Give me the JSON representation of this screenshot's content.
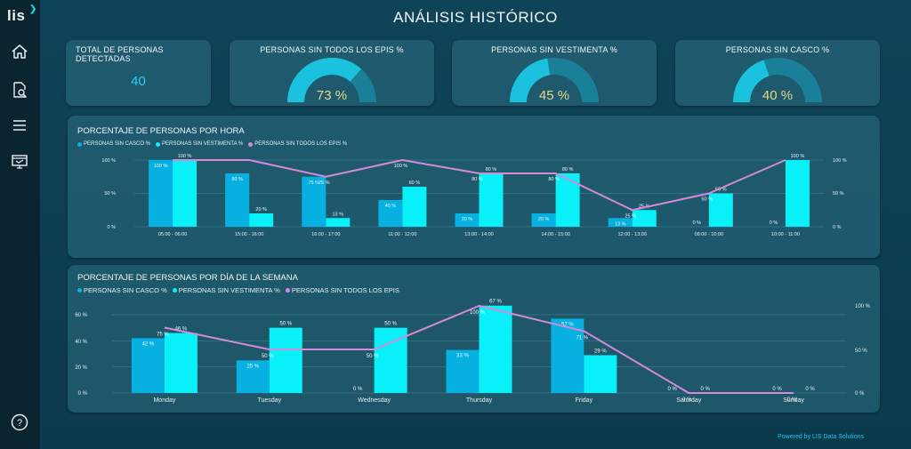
{
  "app": {
    "logo_text": "lis",
    "title": "ANÁLISIS HISTÓRICO",
    "footer": "Powered by LIS Data Solutions"
  },
  "sidebar": {
    "items": [
      {
        "icon": "home-icon"
      },
      {
        "icon": "search-document-icon"
      },
      {
        "icon": "menu-icon"
      },
      {
        "icon": "monitor-icon"
      },
      {
        "icon": "help-icon"
      }
    ],
    "help_label": "?"
  },
  "kpis": {
    "total": {
      "title": "TOTAL DE PERSONAS DETECTADAS",
      "value": "40"
    },
    "gauges": [
      {
        "title": "PERSONAS SIN TODOS LOS EPIS %",
        "value": 73,
        "label": "73 %"
      },
      {
        "title": "PERSONAS SIN VESTIMENTA %",
        "value": 45,
        "label": "45 %"
      },
      {
        "title": "PERSONAS SIN CASCO %",
        "value": 40,
        "label": "40 %"
      }
    ]
  },
  "colors": {
    "casco": "#06b0e0",
    "vestimenta": "#0af0f8",
    "epis": "#d58ad8",
    "gauge_fill": "#1bc2dd",
    "gauge_track": "#1a7f98",
    "gauge_text": "#e8d88a"
  },
  "hour_chart": {
    "title": "PORCENTAJE DE PERSONAS POR HORA",
    "legend": [
      "PERSONAS SIN CASCO %",
      "PERSONAS SIN VESTIMENTA %",
      "PERSONAS SIN TODOS LOS EPIS %"
    ],
    "left_ticks": [
      "100 %",
      "50 %",
      "0 %"
    ],
    "right_ticks": [
      "100 %",
      "50 %",
      "0 %"
    ]
  },
  "week_chart": {
    "title": "PORCENTAJE DE PERSONAS POR DÍA DE LA SEMANA",
    "legend": [
      "PERSONAS SIN CASCO %",
      "PERSONAS SIN VESTIMENTA %",
      "PERSONAS SIN TODOS LOS EPIS"
    ],
    "left_ticks": [
      "60 %",
      "40 %",
      "20 %",
      "0 %"
    ],
    "right_ticks": [
      "100 %",
      "50 %",
      "0 %"
    ]
  },
  "chart_data": [
    {
      "type": "bar",
      "title": "PORCENTAJE DE PERSONAS POR HORA",
      "categories": [
        "05:00 - 06:00",
        "15:00 - 16:00",
        "16:00 - 17:00",
        "11:00 - 12:00",
        "13:00 - 14:00",
        "14:00 - 15:00",
        "12:00 - 13:00",
        "09:00 - 10:00",
        "10:00 - 11:00"
      ],
      "series": [
        {
          "name": "PERSONAS SIN CASCO %",
          "kind": "bar",
          "values": [
            100,
            80,
            75,
            40,
            20,
            20,
            13,
            0,
            0
          ]
        },
        {
          "name": "PERSONAS SIN VESTIMENTA %",
          "kind": "bar",
          "values": [
            100,
            20,
            13,
            60,
            80,
            80,
            25,
            50,
            100
          ]
        },
        {
          "name": "PERSONAS SIN TODOS LOS EPIS %",
          "kind": "line",
          "values": [
            100,
            100,
            75,
            100,
            80,
            80,
            25,
            50,
            100
          ]
        }
      ],
      "ylim": [
        0,
        100
      ],
      "y2lim": [
        0,
        100
      ],
      "line_labels": [
        "",
        "",
        "75 %",
        "100 %",
        "80 %",
        "80 %",
        "25 %",
        "50 %",
        ""
      ]
    },
    {
      "type": "bar",
      "title": "PORCENTAJE DE PERSONAS POR DÍA DE LA SEMANA",
      "categories": [
        "Monday",
        "Tuesday",
        "Wednesday",
        "Thursday",
        "Friday",
        "Saturday",
        "Sunday"
      ],
      "series": [
        {
          "name": "PERSONAS SIN CASCO %",
          "kind": "bar",
          "values": [
            42,
            25,
            0,
            33,
            57,
            0,
            0
          ]
        },
        {
          "name": "PERSONAS SIN VESTIMENTA %",
          "kind": "bar",
          "values": [
            46,
            50,
            50,
            67,
            29,
            0,
            0
          ]
        },
        {
          "name": "PERSONAS SIN TODOS LOS EPIS",
          "kind": "line",
          "values": [
            75,
            50,
            50,
            100,
            71,
            0,
            0
          ]
        }
      ],
      "ylim": [
        0,
        60
      ],
      "y2lim": [
        0,
        100
      ],
      "casco_labels": [
        "42 %",
        "25 %",
        "0 %",
        "33 %",
        "57 %",
        "0 %",
        "0 %"
      ],
      "vest_labels": [
        "46 %",
        "50 %",
        "50 %",
        "67 %",
        "29 %",
        "0 %",
        "0 %"
      ],
      "line_labels": [
        "75 %",
        "50 %",
        "50 %",
        "100 %",
        "71 %",
        "0 %",
        "0 %"
      ]
    }
  ]
}
